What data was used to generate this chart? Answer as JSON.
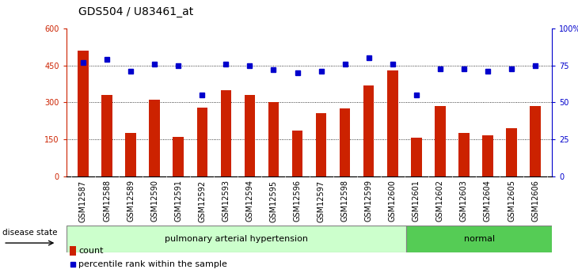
{
  "title": "GDS504 / U83461_at",
  "samples": [
    "GSM12587",
    "GSM12588",
    "GSM12589",
    "GSM12590",
    "GSM12591",
    "GSM12592",
    "GSM12593",
    "GSM12594",
    "GSM12595",
    "GSM12596",
    "GSM12597",
    "GSM12598",
    "GSM12599",
    "GSM12600",
    "GSM12601",
    "GSM12602",
    "GSM12603",
    "GSM12604",
    "GSM12605",
    "GSM12606"
  ],
  "counts": [
    510,
    330,
    175,
    310,
    160,
    280,
    350,
    330,
    300,
    185,
    255,
    275,
    370,
    430,
    155,
    285,
    175,
    165,
    195,
    285
  ],
  "percentiles": [
    77,
    79,
    71,
    76,
    75,
    55,
    76,
    75,
    72,
    70,
    71,
    76,
    80,
    76,
    55,
    73,
    73,
    71,
    73,
    75
  ],
  "group1_label": "pulmonary arterial hypertension",
  "group2_label": "normal",
  "group1_count": 14,
  "group2_count": 6,
  "bar_color": "#cc2200",
  "dot_color": "#0000cc",
  "ylim_left": [
    0,
    600
  ],
  "ylim_right": [
    0,
    100
  ],
  "yticks_left": [
    0,
    150,
    300,
    450,
    600
  ],
  "yticks_right": [
    0,
    25,
    50,
    75,
    100
  ],
  "ytick_labels_right": [
    "0",
    "25",
    "50",
    "75",
    "100%"
  ],
  "disease_state_label": "disease state",
  "legend_count": "count",
  "legend_pct": "percentile rank within the sample",
  "bg_color_plot": "#ffffff",
  "bg_color_xtick": "#c8c8c8",
  "bg_color_group1": "#ccffcc",
  "bg_color_group2": "#55cc55",
  "title_fontsize": 10,
  "tick_fontsize": 7,
  "label_fontsize": 8,
  "grid_dotted_ticks": [
    150,
    300,
    450
  ]
}
